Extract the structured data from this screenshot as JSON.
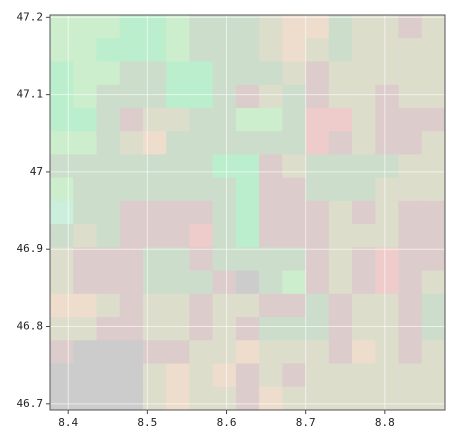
{
  "chart_data": {
    "type": "raster",
    "xlim": [
      8.377,
      8.876
    ],
    "ylim": [
      46.692,
      47.203
    ],
    "xticks": [
      8.4,
      8.5,
      8.6,
      8.7,
      8.8
    ],
    "yticks": [
      46.7,
      46.8,
      46.9,
      47,
      47.1,
      47.2
    ],
    "grid": true,
    "cells": [
      [
        "#cec",
        "#cec",
        "#cec",
        "#bec",
        "#bec",
        "#cec",
        "#cdc",
        "#cdc",
        "#cdc",
        "#ddc",
        "#edc",
        "#edc",
        "#cdc",
        "#ddc",
        "#ddc",
        "#dcc",
        "#ddc"
      ],
      [
        "#cec",
        "#cec",
        "#bec",
        "#bec",
        "#bec",
        "#cec",
        "#cdc",
        "#cdc",
        "#cdc",
        "#ddc",
        "#edc",
        "#ddc",
        "#cdc",
        "#ddc",
        "#ddc",
        "#ddc",
        "#ddc"
      ],
      [
        "#bec",
        "#cec",
        "#cec",
        "#cdc",
        "#cdc",
        "#bec",
        "#bec",
        "#cdc",
        "#cdc",
        "#cdc",
        "#ddc",
        "#dcc",
        "#ddc",
        "#ddc",
        "#ddc",
        "#ddc",
        "#ddc"
      ],
      [
        "#bec",
        "#cec",
        "#cdc",
        "#cdc",
        "#cdc",
        "#bec",
        "#bec",
        "#cdc",
        "#dcc",
        "#ddc",
        "#cdc",
        "#dcc",
        "#ddc",
        "#ddc",
        "#dcc",
        "#ddc",
        "#ddc"
      ],
      [
        "#bec",
        "#bec",
        "#cdc",
        "#dcc",
        "#ddc",
        "#ddc",
        "#cdc",
        "#cdc",
        "#cec",
        "#cec",
        "#cdc",
        "#ecc",
        "#ecc",
        "#ddc",
        "#dcc",
        "#dcc",
        "#dcc"
      ],
      [
        "#cec",
        "#cec",
        "#cdc",
        "#ddc",
        "#edc",
        "#cdc",
        "#cdc",
        "#cdc",
        "#cdc",
        "#cdc",
        "#cdc",
        "#ecc",
        "#dcc",
        "#ddc",
        "#dcc",
        "#dcc",
        "#ddc"
      ],
      [
        "#cdc",
        "#cdc",
        "#cdc",
        "#cdc",
        "#cdc",
        "#cdc",
        "#cdc",
        "#bec",
        "#bec",
        "#dcc",
        "#ddc",
        "#cdc",
        "#cdc",
        "#cdc",
        "#cdc",
        "#ddc",
        "#ddc"
      ],
      [
        "#cec",
        "#cdc",
        "#cdc",
        "#cdc",
        "#cdc",
        "#cdc",
        "#cdc",
        "#cdc",
        "#bec",
        "#dcc",
        "#dcc",
        "#cdc",
        "#cdc",
        "#cdc",
        "#ddc",
        "#ddc",
        "#ddc"
      ],
      [
        "#ced",
        "#cdc",
        "#cdc",
        "#dcc",
        "#dcc",
        "#dcc",
        "#dcc",
        "#cdc",
        "#bec",
        "#dcc",
        "#dcc",
        "#dcc",
        "#ddc",
        "#dcc",
        "#ddc",
        "#dcc",
        "#dcc"
      ],
      [
        "#cdc",
        "#ddc",
        "#cdc",
        "#dcc",
        "#dcc",
        "#dcc",
        "#ecc",
        "#cdc",
        "#bec",
        "#dcc",
        "#dcc",
        "#dcc",
        "#ddc",
        "#ddc",
        "#ddc",
        "#dcc",
        "#dcc"
      ],
      [
        "#ddc",
        "#dcc",
        "#dcc",
        "#dcc",
        "#cdc",
        "#cdc",
        "#dcc",
        "#cdc",
        "#cdc",
        "#cdc",
        "#cdc",
        "#dcc",
        "#ddc",
        "#dcc",
        "#ecc",
        "#dcc",
        "#dcc"
      ],
      [
        "#ddc",
        "#dcc",
        "#dcc",
        "#dcc",
        "#cdc",
        "#cdc",
        "#cdc",
        "#dcc",
        "#ccc",
        "#cdc",
        "#cec",
        "#dcc",
        "#ddc",
        "#dcc",
        "#ecc",
        "#dcc",
        "#ddc"
      ],
      [
        "#edc",
        "#edc",
        "#ddc",
        "#dcc",
        "#ddc",
        "#ddc",
        "#dcc",
        "#ddc",
        "#ddc",
        "#dcc",
        "#dcc",
        "#cdc",
        "#dcc",
        "#ddc",
        "#ddc",
        "#dcc",
        "#cdc"
      ],
      [
        "#ddc",
        "#ddc",
        "#dcc",
        "#dcc",
        "#ddc",
        "#ddc",
        "#dcc",
        "#ddc",
        "#dcc",
        "#cdc",
        "#cdc",
        "#cdc",
        "#dcc",
        "#ddc",
        "#ddc",
        "#dcc",
        "#cdc"
      ],
      [
        "#dcc",
        "#ccc",
        "#ccc",
        "#ccc",
        "#dcc",
        "#dcc",
        "#ddc",
        "#ddc",
        "#edc",
        "#ddc",
        "#ddc",
        "#ddc",
        "#dcc",
        "#edc",
        "#ddc",
        "#dcc",
        "#ddc"
      ],
      [
        "#ccc",
        "#ccc",
        "#ccc",
        "#ccc",
        "#ddc",
        "#edc",
        "#ddc",
        "#edc",
        "#dcc",
        "#ddc",
        "#dcc",
        "#ddc",
        "#ddc",
        "#ddc",
        "#ddc",
        "#ddc",
        "#ddc"
      ],
      [
        "#ccc",
        "#ccc",
        "#ccc",
        "#ccc",
        "#ddc",
        "#edc",
        "#ddc",
        "#ddc",
        "#dcc",
        "#edc",
        "#ddc",
        "#ddc",
        "#ddc",
        "#ddc",
        "#ddc",
        "#ddc",
        "#ddc"
      ]
    ]
  }
}
